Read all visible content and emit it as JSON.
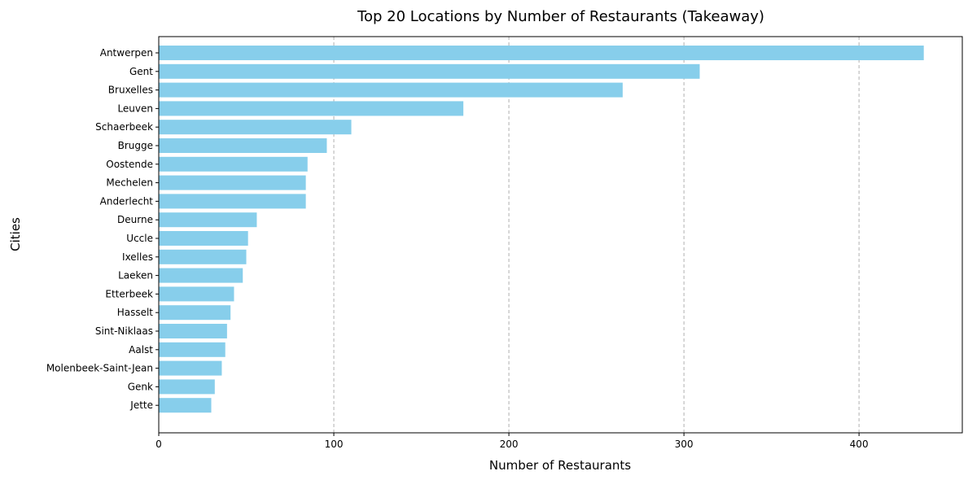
{
  "chart_data": {
    "type": "bar",
    "orientation": "horizontal",
    "title": "Top 20 Locations by Number of Restaurants (Takeaway)",
    "xlabel": "Number of Restaurants",
    "ylabel": "Cities",
    "categories": [
      "Antwerpen",
      "Gent",
      "Bruxelles",
      "Leuven",
      "Schaerbeek",
      "Brugge",
      "Oostende",
      "Mechelen",
      "Anderlecht",
      "Deurne",
      "Uccle",
      "Ixelles",
      "Laeken",
      "Etterbeek",
      "Hasselt",
      "Sint-Niklaas",
      "Aalst",
      "Molenbeek-Saint-Jean",
      "Genk",
      "Jette"
    ],
    "values": [
      437,
      309,
      265,
      174,
      110,
      96,
      85,
      84,
      84,
      56,
      51,
      50,
      48,
      43,
      41,
      39,
      38,
      36,
      32,
      30
    ],
    "xlim": [
      0,
      459
    ],
    "xticks": [
      0,
      100,
      200,
      300,
      400
    ],
    "grid": "x-dashed",
    "bar_color": "#87ceeb",
    "grid_color": "#b0b0b0"
  }
}
